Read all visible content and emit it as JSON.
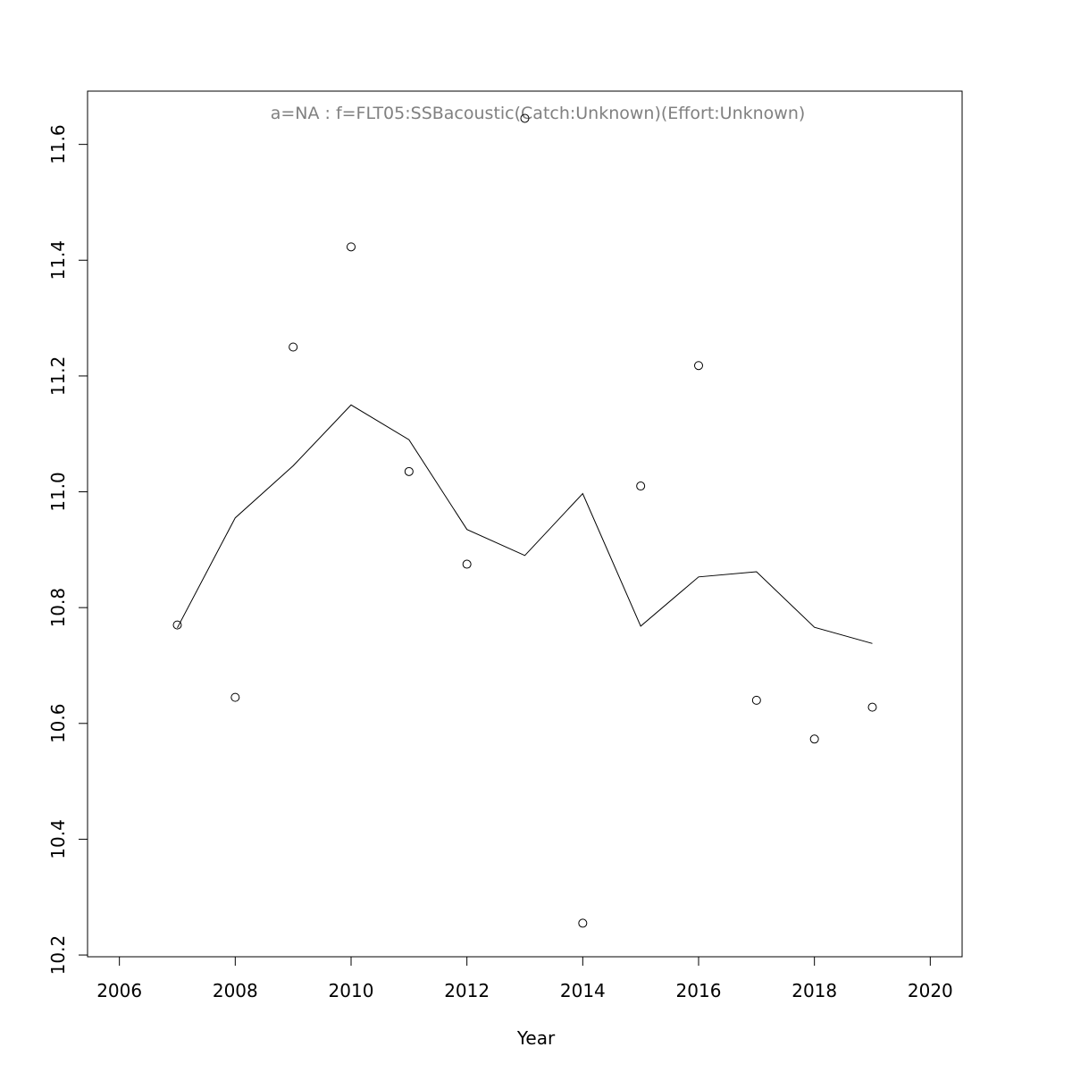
{
  "chart_data": {
    "type": "line",
    "title": "a=NA  :  f=FLT05:SSBacoustic(Catch:Unknown)(Effort:Unknown)",
    "xlabel": "Year",
    "ylabel": "",
    "xlim": [
      2005.45,
      2020.55
    ],
    "ylim": [
      10.197,
      11.692
    ],
    "x_ticks": [
      2006,
      2008,
      2010,
      2012,
      2014,
      2016,
      2018,
      2020
    ],
    "y_ticks": [
      10.2,
      10.4,
      10.6,
      10.8,
      11.0,
      11.2,
      11.4,
      11.6
    ],
    "grid": false,
    "series": [
      {
        "kind": "points",
        "x": [
          2007,
          2008,
          2009,
          2010,
          2011,
          2012,
          2013,
          2014,
          2015,
          2016,
          2017,
          2018,
          2019
        ],
        "y": [
          10.77,
          10.645,
          11.25,
          11.423,
          11.035,
          10.875,
          11.645,
          10.255,
          11.01,
          11.218,
          10.64,
          10.573,
          10.628
        ]
      },
      {
        "kind": "line",
        "x": [
          2007,
          2008,
          2009,
          2010,
          2011,
          2012,
          2013,
          2014,
          2015,
          2016,
          2017,
          2018,
          2019
        ],
        "y": [
          10.765,
          10.955,
          11.045,
          11.15,
          11.09,
          10.935,
          10.89,
          10.997,
          10.768,
          10.853,
          10.862,
          10.766,
          10.738
        ]
      }
    ],
    "colors": {
      "points": "#000000",
      "line": "#000000",
      "title": "#808080"
    }
  }
}
